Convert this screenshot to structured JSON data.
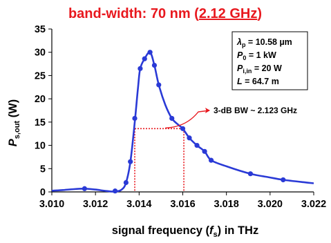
{
  "chart_data": {
    "type": "line",
    "title": {
      "prefix": "band-width: 70 nm (",
      "highlight": "2.12 GHz",
      "suffix": ")"
    },
    "xlabel": {
      "before": "signal frequency (",
      "var": "f",
      "sub": "s",
      "after": ") in THz"
    },
    "ylabel": {
      "var": "P",
      "sub": "s,out",
      "after": " (W)"
    },
    "xlim": [
      3.01,
      3.022
    ],
    "ylim": [
      0,
      35
    ],
    "xticks": [
      "3.010",
      "3.012",
      "3.014",
      "3.016",
      "3.018",
      "3.020",
      "3.022"
    ],
    "yticks": [
      "0",
      "5",
      "10",
      "15",
      "20",
      "25",
      "30",
      "35"
    ],
    "grid": false,
    "series": [
      {
        "color": "#2a3ad6",
        "marker": "circle",
        "points": [
          [
            3.0115,
            0.7
          ],
          [
            3.0129,
            0.2
          ],
          [
            3.0134,
            2.0
          ],
          [
            3.0136,
            6.5
          ],
          [
            3.0138,
            15.8
          ],
          [
            3.01405,
            26.5
          ],
          [
            3.01425,
            28.6
          ],
          [
            3.0145,
            30.0
          ],
          [
            3.0147,
            27.2
          ],
          [
            3.0149,
            23.0
          ],
          [
            3.0155,
            15.8
          ],
          [
            3.016,
            13.6
          ],
          [
            3.0163,
            11.6
          ],
          [
            3.01665,
            10.0
          ],
          [
            3.017,
            8.7
          ],
          [
            3.0173,
            6.8
          ],
          [
            3.0191,
            3.9
          ],
          [
            3.0206,
            2.6
          ]
        ],
        "curve": [
          [
            3.01,
            0.25
          ],
          [
            3.0105,
            0.4
          ],
          [
            3.011,
            0.6
          ],
          [
            3.0115,
            0.7
          ],
          [
            3.012,
            0.5
          ],
          [
            3.0125,
            0.2
          ],
          [
            3.0129,
            0.08
          ],
          [
            3.0132,
            0.5
          ],
          [
            3.0134,
            2.0
          ],
          [
            3.0136,
            6.5
          ],
          [
            3.0138,
            15.0
          ],
          [
            3.01395,
            22.5
          ],
          [
            3.01405,
            26.5
          ],
          [
            3.01425,
            28.6
          ],
          [
            3.0145,
            30.0
          ],
          [
            3.0147,
            27.2
          ],
          [
            3.0149,
            23.0
          ],
          [
            3.0152,
            18.7
          ],
          [
            3.0155,
            15.8
          ],
          [
            3.0158,
            14.4
          ],
          [
            3.016,
            13.6
          ],
          [
            3.0163,
            11.6
          ],
          [
            3.01665,
            10.0
          ],
          [
            3.017,
            8.7
          ],
          [
            3.0173,
            6.8
          ],
          [
            3.018,
            5.5
          ],
          [
            3.0191,
            3.9
          ],
          [
            3.02,
            3.1
          ],
          [
            3.0206,
            2.6
          ],
          [
            3.0215,
            2.1
          ],
          [
            3.022,
            1.85
          ]
        ]
      }
    ],
    "bandwidth_marker": {
      "level": 13.6,
      "x_start": 3.0138,
      "x_end": 3.01605,
      "color": "#e8181e"
    },
    "legend": {
      "placement": "top-right",
      "items": [
        {
          "var": "λ",
          "sub": "p",
          "rest": " = 10.58 µm"
        },
        {
          "var": "P",
          "sub": "0",
          "rest": " = 1 kW"
        },
        {
          "var": "P",
          "sub": "i,in",
          "rest": " = 20 W"
        },
        {
          "var": "L",
          "sub": "",
          "rest": " = 64.7 m"
        }
      ]
    },
    "annotation": {
      "text": "3-dB BW ~ 2.123 GHz",
      "color": "#e8181e"
    },
    "colors": {
      "title": "#e8181e",
      "series": "#2a3ad6",
      "marker": "#e8181e"
    }
  }
}
